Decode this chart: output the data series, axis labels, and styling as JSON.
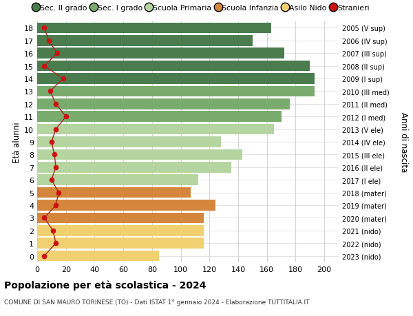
{
  "ages": [
    18,
    17,
    16,
    15,
    14,
    13,
    12,
    11,
    10,
    9,
    8,
    7,
    6,
    5,
    4,
    3,
    2,
    1,
    0
  ],
  "bar_values": [
    163,
    150,
    172,
    190,
    193,
    193,
    176,
    170,
    165,
    128,
    143,
    135,
    112,
    107,
    124,
    116,
    116,
    116,
    85
  ],
  "bar_colors": [
    "#4a7c4e",
    "#4a7c4e",
    "#4a7c4e",
    "#4a7c4e",
    "#4a7c4e",
    "#7aab6e",
    "#7aab6e",
    "#7aab6e",
    "#b5d5a0",
    "#b5d5a0",
    "#b5d5a0",
    "#b5d5a0",
    "#b5d5a0",
    "#d4873c",
    "#d4873c",
    "#d4873c",
    "#f0d070",
    "#f0d070",
    "#f0d070"
  ],
  "stranieri_values": [
    5,
    8,
    14,
    5,
    18,
    9,
    13,
    20,
    13,
    10,
    12,
    13,
    10,
    15,
    13,
    5,
    11,
    13,
    5
  ],
  "right_labels": [
    "2005 (V sup)",
    "2006 (IV sup)",
    "2007 (III sup)",
    "2008 (II sup)",
    "2009 (I sup)",
    "2010 (III med)",
    "2011 (II med)",
    "2012 (I med)",
    "2013 (V ele)",
    "2014 (IV ele)",
    "2015 (III ele)",
    "2016 (II ele)",
    "2017 (I ele)",
    "2018 (mater)",
    "2019 (mater)",
    "2020 (mater)",
    "2021 (nido)",
    "2022 (nido)",
    "2023 (nido)"
  ],
  "legend_labels": [
    "Sec. II grado",
    "Sec. I grado",
    "Scuola Primaria",
    "Scuola Infanzia",
    "Asilo Nido",
    "Stranieri"
  ],
  "legend_colors": [
    "#4a7c4e",
    "#7aab6e",
    "#b5d5a0",
    "#d4873c",
    "#f0d070",
    "#cc1111"
  ],
  "ylabel_left": "Età alunni",
  "ylabel_right": "Anni di nascita",
  "title": "Popolazione per età scolastica - 2024",
  "subtitle": "COMUNE DI SAN MAURO TORINESE (TO) - Dati ISTAT 1° gennaio 2024 - Elaborazione TUTTITALIA.IT",
  "xlim": [
    0,
    210
  ],
  "xticks": [
    0,
    20,
    40,
    60,
    80,
    100,
    120,
    140,
    160,
    180,
    200
  ],
  "bar_height": 0.85,
  "stranieri_color": "#cc1111",
  "stranieri_line_color": "#aa2222",
  "bg_color": "#ffffff",
  "grid_color": "#cccccc"
}
